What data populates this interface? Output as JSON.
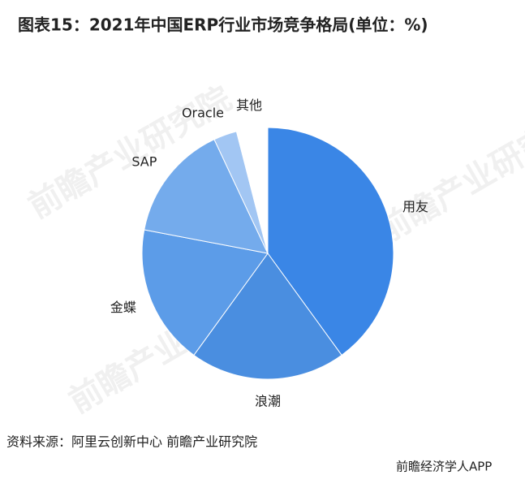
{
  "chart_data": {
    "type": "pie",
    "title": "图表15：2021年中国ERP行业市场竞争格局(单位：%)",
    "categories": [
      "用友",
      "浪潮",
      "金蝶",
      "SAP",
      "Oracle",
      "其他"
    ],
    "values": [
      40,
      20,
      18,
      15,
      3,
      4
    ],
    "colors": [
      "#3a86e6",
      "#4a8ee0",
      "#5c9ce8",
      "#74abec",
      "#a2c6f3",
      "#ffffff"
    ],
    "source": "资料来源：阿里云创新中心 前瞻产业研究院",
    "footer": "前瞻经济学人APP"
  }
}
